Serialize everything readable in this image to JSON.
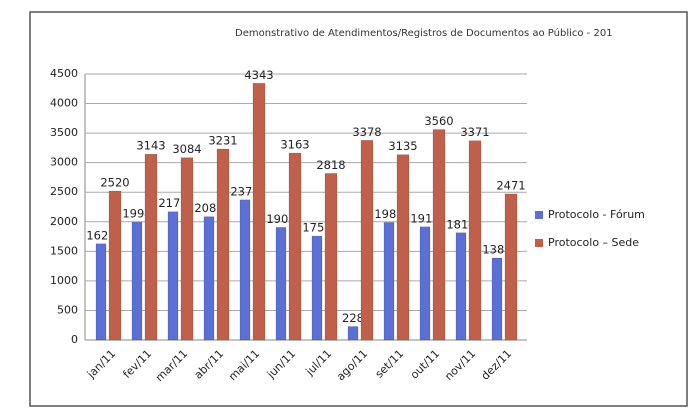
{
  "chart_data": {
    "type": "bar",
    "title": "Demonstrativo de Atendimentos/Registros de Documentos ao Público - 201",
    "categories": [
      "jan/11",
      "fev/11",
      "mar/11",
      "abr/11",
      "mai/11",
      "jun/11",
      "jul/11",
      "ago/11",
      "set/11",
      "out/11",
      "nov/11",
      "dez/11"
    ],
    "series": [
      {
        "name": "Protocolo - Fórum",
        "color": "#5b6fd6",
        "values": [
          1628,
          1994,
          2170,
          2086,
          2371,
          1905,
          1758,
          228,
          1988,
          1915,
          1814,
          1387
        ]
      },
      {
        "name": "Protocolo – Sede",
        "color": "#c0604a",
        "values": [
          2520,
          3143,
          3084,
          3231,
          4343,
          3163,
          2818,
          3378,
          3135,
          3560,
          3371,
          2471
        ]
      }
    ],
    "ylim": [
      0,
      4500
    ],
    "yticks": [
      0,
      500,
      1000,
      1500,
      2000,
      2500,
      3000,
      3500,
      4000,
      4500
    ],
    "grid": true,
    "legend": "right"
  }
}
